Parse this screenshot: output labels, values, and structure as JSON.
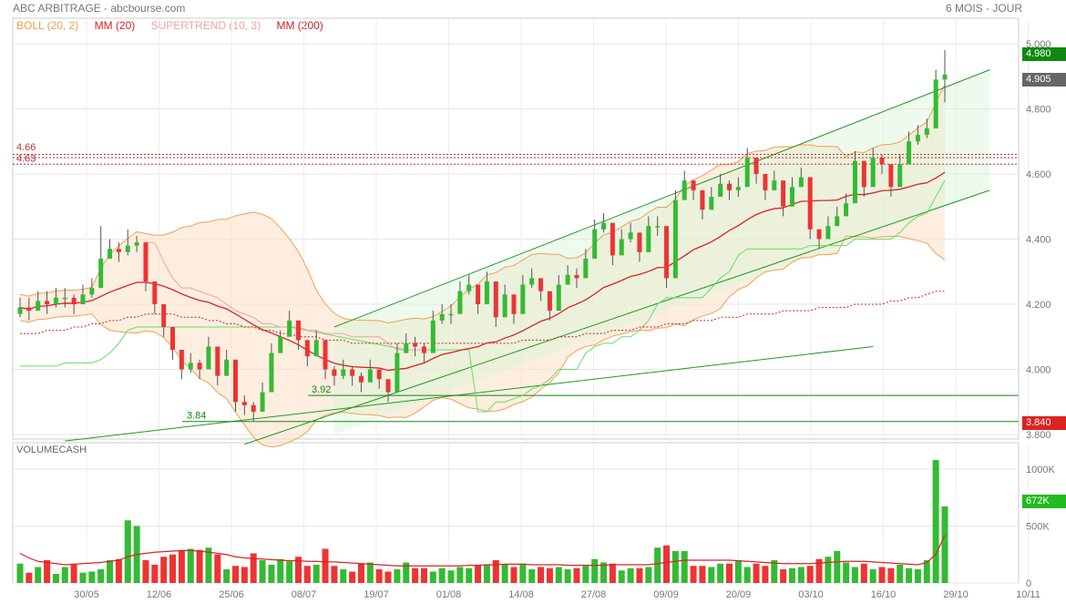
{
  "header": {
    "title": "ABC ARBITRAGE - abcbourse.com",
    "period": "6 MOIS - JOUR"
  },
  "legend": [
    {
      "label": "BOLL (20, 2)",
      "color": "#f0a050"
    },
    {
      "label": "MM (20)",
      "color": "#dd2222"
    },
    {
      "label": "SUPERTREND (10, 3)",
      "color": "#f4a0a0"
    },
    {
      "label": "MM (200)",
      "color": "#cc2222"
    }
  ],
  "price_tags": {
    "high": "4.980",
    "last": "4.905",
    "low": "3.840",
    "volume": "672K"
  },
  "level_labels": {
    "r1": "4.66",
    "r2": "4.63",
    "s1": "3.92",
    "s2": "3.84"
  },
  "volume_title": "VOLUMECASH",
  "colors": {
    "up": "#33bb33",
    "down": "#ee3333",
    "boll": "#f0a050",
    "mm20": "#dd2222",
    "supertrend_up": "#66dd66",
    "supertrend_down": "#f4a0a0",
    "channel": "#229922"
  },
  "chart_data": [
    {
      "type": "candlestick",
      "x_ticks": [
        "30/05",
        "12/06",
        "25/06",
        "08/07",
        "19/07",
        "01/08",
        "14/08",
        "27/08",
        "09/09",
        "20/09",
        "03/10",
        "16/10",
        "29/10",
        "10/11"
      ],
      "y_ticks": [
        3.8,
        4.0,
        4.2,
        4.4,
        4.6,
        4.8,
        5.0
      ],
      "y_tick_labels": [
        "3.800",
        "4.000",
        "4.200",
        "4.400",
        "4.600",
        "4.800",
        "5.000"
      ],
      "ylim": [
        3.78,
        5.02
      ],
      "close": [
        4.19,
        4.18,
        4.21,
        4.2,
        4.22,
        4.22,
        4.2,
        4.23,
        4.25,
        4.34,
        4.37,
        4.36,
        4.38,
        4.39,
        4.27,
        4.2,
        4.13,
        4.06,
        4.0,
        4.02,
        4.0,
        4.07,
        3.98,
        4.03,
        3.9,
        3.89,
        3.87,
        3.93,
        4.05,
        4.1,
        4.15,
        4.09,
        4.04,
        4.09,
        4.0,
        3.98,
        4.0,
        3.98,
        3.96,
        4.0,
        3.97,
        3.93,
        4.05,
        4.08,
        4.07,
        4.05,
        4.15,
        4.17,
        4.17,
        4.24,
        4.26,
        4.2,
        4.27,
        4.16,
        4.23,
        4.17,
        4.26,
        4.28,
        4.24,
        4.18,
        4.26,
        4.29,
        4.28,
        4.34,
        4.43,
        4.45,
        4.35,
        4.4,
        4.42,
        4.36,
        4.44,
        4.44,
        4.28,
        4.52,
        4.58,
        4.55,
        4.49,
        4.53,
        4.57,
        4.55,
        4.56,
        4.65,
        4.6,
        4.55,
        4.58,
        4.5,
        4.56,
        4.59,
        4.43,
        4.4,
        4.44,
        4.47,
        4.51,
        4.64,
        4.56,
        4.65,
        4.63,
        4.56,
        4.63,
        4.7,
        4.72,
        4.74,
        4.89,
        4.905
      ],
      "high": [
        4.22,
        4.22,
        4.24,
        4.24,
        4.25,
        4.25,
        4.23,
        4.26,
        4.28,
        4.44,
        4.4,
        4.39,
        4.43,
        4.41,
        4.3,
        4.23,
        4.16,
        4.09,
        4.03,
        4.05,
        4.03,
        4.1,
        4.02,
        4.06,
        3.93,
        3.92,
        3.9,
        3.96,
        4.08,
        4.12,
        4.18,
        4.12,
        4.07,
        4.12,
        4.03,
        4.01,
        4.03,
        4.01,
        3.99,
        4.03,
        4.0,
        3.96,
        4.08,
        4.11,
        4.1,
        4.08,
        4.18,
        4.2,
        4.2,
        4.27,
        4.29,
        4.23,
        4.3,
        4.19,
        4.26,
        4.2,
        4.29,
        4.31,
        4.27,
        4.21,
        4.29,
        4.32,
        4.31,
        4.37,
        4.46,
        4.48,
        4.38,
        4.43,
        4.45,
        4.39,
        4.47,
        4.47,
        4.31,
        4.55,
        4.61,
        4.58,
        4.52,
        4.56,
        4.6,
        4.58,
        4.59,
        4.68,
        4.63,
        4.58,
        4.61,
        4.53,
        4.59,
        4.62,
        4.46,
        4.43,
        4.47,
        4.5,
        4.54,
        4.67,
        4.59,
        4.68,
        4.66,
        4.59,
        4.66,
        4.73,
        4.75,
        4.77,
        4.92,
        4.98
      ],
      "low": [
        4.16,
        4.15,
        4.18,
        4.17,
        4.19,
        4.19,
        4.17,
        4.2,
        4.22,
        4.31,
        4.34,
        4.33,
        4.35,
        4.36,
        4.24,
        4.17,
        4.1,
        4.03,
        3.97,
        3.99,
        3.97,
        4.04,
        3.95,
        4.0,
        3.87,
        3.86,
        3.84,
        3.9,
        4.02,
        4.07,
        4.12,
        4.06,
        4.01,
        4.06,
        3.97,
        3.95,
        3.97,
        3.95,
        3.93,
        3.97,
        3.94,
        3.9,
        4.02,
        4.05,
        4.04,
        4.02,
        4.12,
        4.14,
        4.14,
        4.21,
        4.23,
        4.17,
        4.24,
        4.13,
        4.2,
        4.14,
        4.23,
        4.25,
        4.21,
        4.15,
        4.23,
        4.26,
        4.25,
        4.31,
        4.4,
        4.42,
        4.32,
        4.37,
        4.39,
        4.33,
        4.41,
        4.41,
        4.25,
        4.49,
        4.55,
        4.52,
        4.46,
        4.5,
        4.54,
        4.52,
        4.53,
        4.62,
        4.57,
        4.52,
        4.55,
        4.47,
        4.53,
        4.56,
        4.4,
        4.37,
        4.41,
        4.44,
        4.48,
        4.61,
        4.53,
        4.62,
        4.6,
        4.53,
        4.6,
        4.67,
        4.69,
        4.71,
        4.86,
        4.82
      ],
      "mm200": [
        4.11,
        4.11,
        4.11,
        4.12,
        4.12,
        4.12,
        4.13,
        4.13,
        4.14,
        4.14,
        4.15,
        4.15,
        4.16,
        4.16,
        4.17,
        4.17,
        4.17,
        4.17,
        4.16,
        4.16,
        4.16,
        4.15,
        4.15,
        4.14,
        4.14,
        4.13,
        4.13,
        4.12,
        4.12,
        4.11,
        4.11,
        4.1,
        4.1,
        4.1,
        4.09,
        4.09,
        4.09,
        4.08,
        4.08,
        4.08,
        4.08,
        4.08,
        4.08,
        4.08,
        4.08,
        4.08,
        4.08,
        4.08,
        4.08,
        4.08,
        4.08,
        4.08,
        4.08,
        4.08,
        4.08,
        4.08,
        4.09,
        4.09,
        4.09,
        4.09,
        4.1,
        4.1,
        4.1,
        4.11,
        4.11,
        4.11,
        4.12,
        4.12,
        4.12,
        4.13,
        4.13,
        4.13,
        4.14,
        4.14,
        4.14,
        4.15,
        4.15,
        4.15,
        4.16,
        4.16,
        4.16,
        4.17,
        4.17,
        4.17,
        4.17,
        4.18,
        4.18,
        4.18,
        4.18,
        4.19,
        4.19,
        4.19,
        4.19,
        4.2,
        4.2,
        4.2,
        4.2,
        4.21,
        4.21,
        4.22,
        4.22,
        4.23,
        4.24,
        4.24
      ],
      "supertrend": [
        4.01,
        4.01,
        4.01,
        4.01,
        4.01,
        4.02,
        4.02,
        4.02,
        4.02,
        4.03,
        4.05,
        4.08,
        4.12,
        4.13,
        4.39,
        4.39,
        4.33,
        4.28,
        4.25,
        4.25,
        4.24,
        4.23,
        4.22,
        4.2,
        4.18,
        4.17,
        4.16,
        4.14,
        4.14,
        4.13,
        4.13,
        4.13,
        4.12,
        4.12,
        4.11,
        4.11,
        4.11,
        4.1,
        4.1,
        4.1,
        4.1,
        4.08,
        4.06,
        4.06,
        4.06,
        4.06,
        4.06,
        4.06,
        4.06,
        4.06,
        4.06,
        3.87,
        3.87,
        3.9,
        3.9,
        3.91,
        3.92,
        3.94,
        3.95,
        3.97,
        4.0,
        4.0,
        4.0,
        4.05,
        4.07,
        4.08,
        4.08,
        4.1,
        4.1,
        4.12,
        4.15,
        4.2,
        4.22,
        4.22,
        4.22,
        4.22,
        4.22,
        4.25,
        4.28,
        4.3,
        4.35,
        4.37,
        4.37,
        4.37,
        4.37,
        4.37,
        4.37,
        4.37,
        4.38,
        4.38,
        4.38,
        4.38,
        4.38,
        4.4,
        4.4,
        4.4,
        4.4,
        4.4,
        4.42,
        4.45,
        4.47,
        4.48,
        4.53,
        4.58
      ]
    },
    {
      "type": "bar",
      "title": "VOLUMECASH",
      "y_tick_labels": [
        "0",
        "500K",
        "1000K"
      ],
      "ylim": [
        0,
        1150
      ],
      "values": [
        170,
        90,
        140,
        200,
        80,
        140,
        160,
        90,
        100,
        120,
        200,
        210,
        550,
        500,
        200,
        160,
        230,
        250,
        280,
        300,
        290,
        310,
        250,
        120,
        150,
        140,
        260,
        200,
        160,
        210,
        190,
        230,
        150,
        160,
        300,
        150,
        120,
        100,
        170,
        180,
        120,
        100,
        120,
        180,
        130,
        130,
        100,
        130,
        110,
        140,
        130,
        160,
        160,
        200,
        160,
        140,
        170,
        120,
        140,
        130,
        140,
        120,
        130,
        150,
        210,
        180,
        170,
        110,
        130,
        130,
        140,
        310,
        330,
        280,
        280,
        150,
        150,
        140,
        170,
        170,
        200,
        140,
        170,
        150,
        200,
        120,
        130,
        140,
        150,
        210,
        230,
        280,
        180,
        140,
        170,
        120,
        140,
        130,
        160,
        130,
        120,
        200,
        1080,
        672
      ],
      "ma": [
        260,
        220,
        190,
        180,
        170,
        160,
        165,
        170,
        175,
        180,
        190,
        200,
        230,
        250,
        260,
        270,
        275,
        280,
        285,
        285,
        280,
        270,
        260,
        250,
        230,
        220,
        215,
        210,
        205,
        200,
        195,
        195,
        190,
        190,
        185,
        185,
        180,
        175,
        170,
        165,
        160,
        155,
        150,
        150,
        150,
        150,
        150,
        150,
        150,
        150,
        155,
        155,
        160,
        160,
        165,
        165,
        165,
        160,
        160,
        160,
        160,
        155,
        155,
        155,
        155,
        155,
        160,
        160,
        160,
        160,
        160,
        170,
        180,
        190,
        200,
        200,
        200,
        200,
        200,
        200,
        195,
        190,
        185,
        180,
        175,
        170,
        170,
        170,
        170,
        175,
        180,
        185,
        190,
        190,
        190,
        185,
        180,
        175,
        170,
        165,
        160,
        180,
        250,
        420
      ]
    }
  ]
}
